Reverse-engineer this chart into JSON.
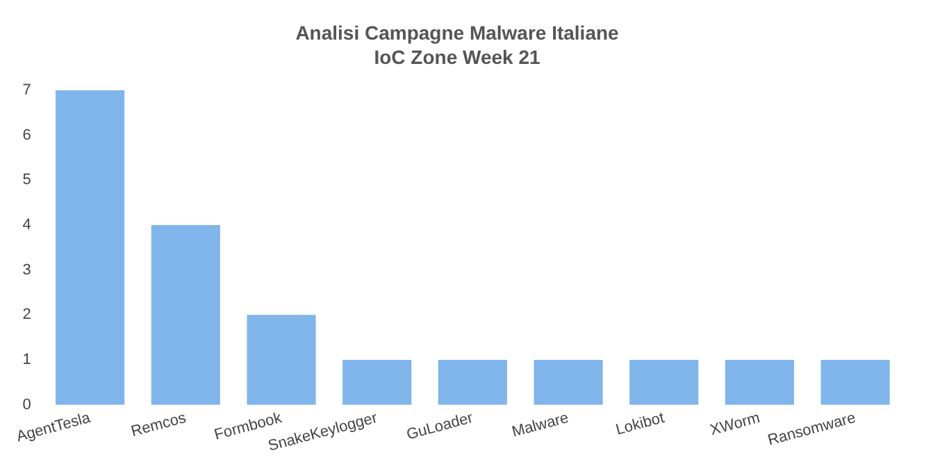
{
  "chart_data": {
    "type": "bar",
    "title": "Analisi Campagne Malware Italiane",
    "subtitle": "IoC Zone Week 21",
    "categories": [
      "AgentTesla",
      "Remcos",
      "Formbook",
      "SnakeKeylogger",
      "GuLoader",
      "Malware",
      "Lokibot",
      "XWorm",
      "Ransomware"
    ],
    "values": [
      7,
      4,
      2,
      1,
      1,
      1,
      1,
      1,
      1
    ],
    "color": "#7fb5ea",
    "ylim": [
      0,
      7
    ],
    "yticks": [
      0,
      1,
      2,
      3,
      4,
      5,
      6,
      7
    ],
    "grid": false
  }
}
